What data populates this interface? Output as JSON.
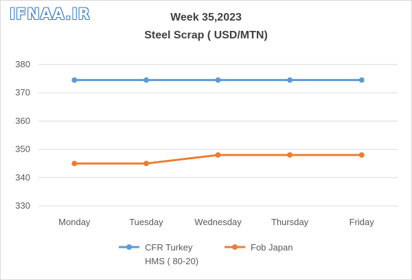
{
  "watermark": "IFNAA.IR",
  "chart_data": {
    "type": "line",
    "title": "Week 35,2023",
    "subtitle": "Steel Scrap ( USD/MTN)",
    "categories": [
      "Monday",
      "Tuesday",
      "Wednesday",
      "Thursday",
      "Friday"
    ],
    "yticks": [
      "330",
      "340",
      "350",
      "360",
      "370",
      "380"
    ],
    "ylim": [
      330,
      380
    ],
    "grid": true,
    "legend_position": "bottom",
    "series": [
      {
        "name": "CFR Turkey HMS ( 80-20)",
        "name_lines": [
          "CFR Turkey",
          "HMS ( 80-20)"
        ],
        "values": [
          374.5,
          374.5,
          374.5,
          374.5,
          374.5
        ],
        "color": "#5b9bd5"
      },
      {
        "name": "Fob Japan",
        "name_lines": [
          "Fob Japan"
        ],
        "values": [
          345,
          345,
          348,
          348,
          348
        ],
        "color": "#ed7d31"
      }
    ]
  }
}
